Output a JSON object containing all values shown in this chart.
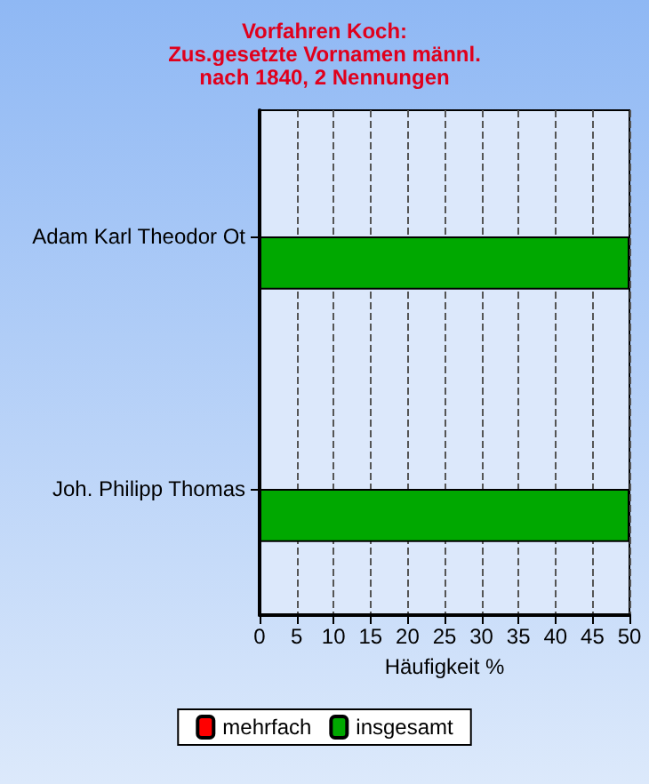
{
  "chart_data": {
    "type": "bar",
    "orientation": "horizontal",
    "title": "Vorfahren Koch:\nZus.gesetzte Vornamen männl.\nnach 1840, 2 Nennungen",
    "xlabel": "Häufigkeit %",
    "categories": [
      "Adam Karl Theodor Ot",
      "Joh. Philipp Thomas"
    ],
    "series": [
      {
        "name": "mehrfach",
        "color": "#ff0000",
        "values": [
          null,
          null
        ]
      },
      {
        "name": "insgesamt",
        "color": "#00a800",
        "values": [
          50,
          50
        ]
      }
    ],
    "xlim": [
      0,
      50
    ],
    "xticks": [
      0,
      5,
      10,
      15,
      20,
      25,
      30,
      35,
      40,
      45,
      50
    ],
    "grid": "x",
    "legend": "bottom"
  }
}
